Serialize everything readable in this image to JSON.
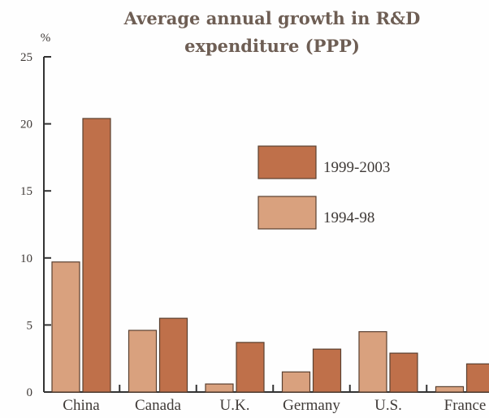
{
  "chart_data": {
    "type": "bar",
    "title_line1": "Average annual growth in R&D",
    "title_line2": "expenditure (PPP)",
    "ylabel": "%",
    "ylim": [
      0,
      25
    ],
    "yticks": [
      "0",
      "5",
      "10",
      "15",
      "20",
      "25"
    ],
    "categories": [
      "China",
      "Canada",
      "U.K.",
      "Germany",
      "U.S.",
      "France"
    ],
    "series": [
      {
        "name": "1994-98",
        "color": "#d9a17e",
        "values": [
          9.7,
          4.6,
          0.6,
          1.5,
          4.5,
          0.4
        ]
      },
      {
        "name": "1999-2003",
        "color": "#bf704a",
        "values": [
          20.4,
          5.5,
          3.7,
          3.2,
          2.9,
          2.1
        ]
      }
    ],
    "legend_position": "center-right",
    "grid": false
  }
}
